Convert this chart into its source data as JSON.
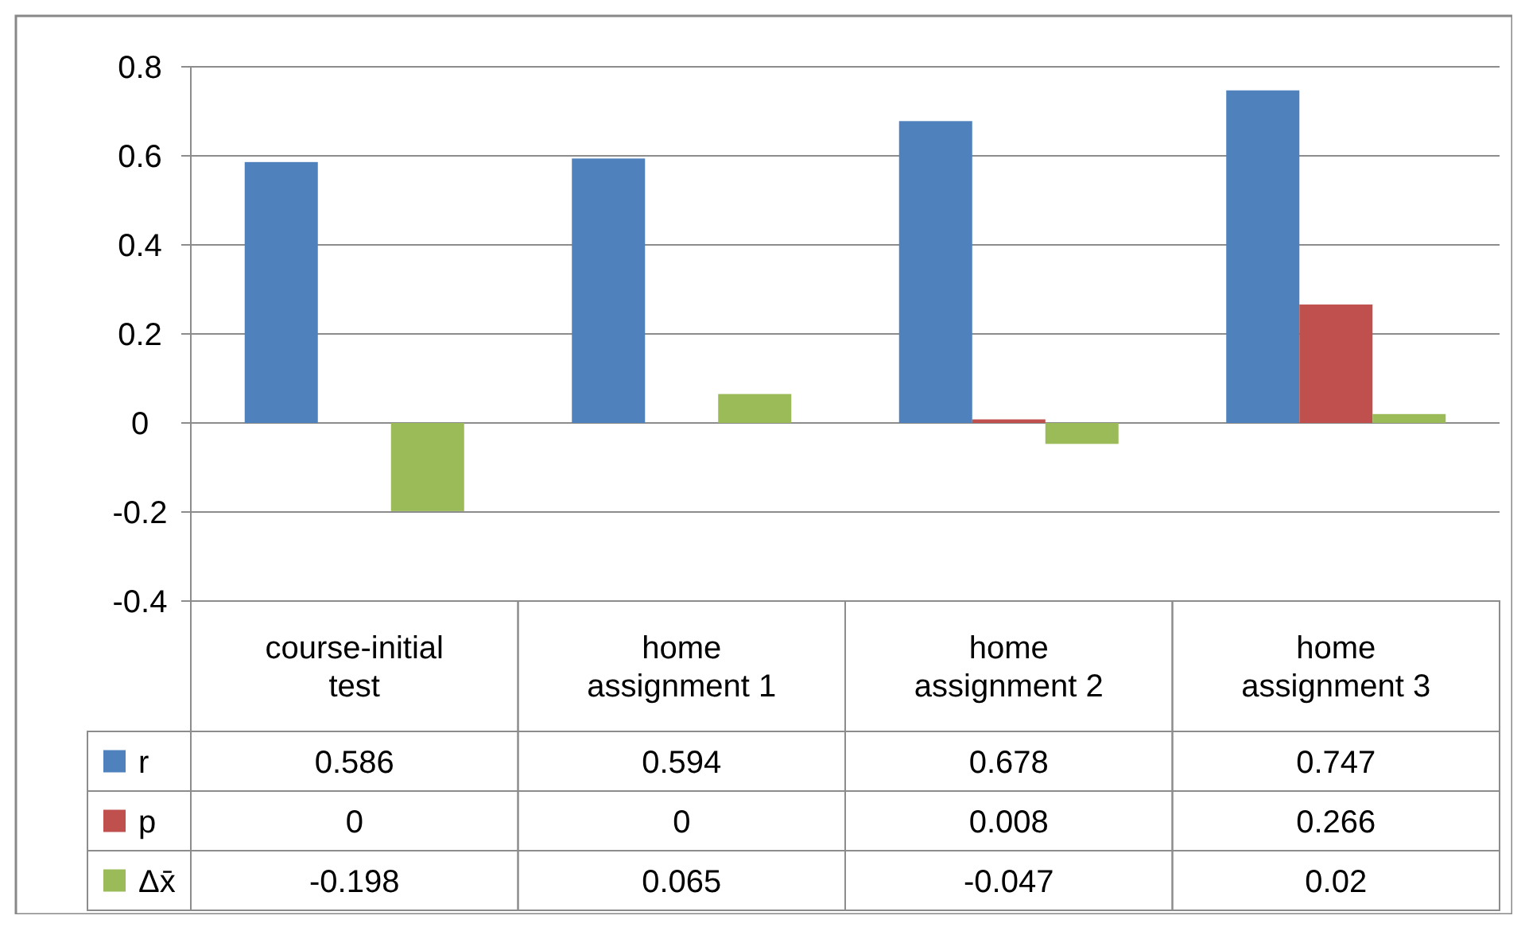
{
  "chart_data": {
    "type": "bar",
    "categories": [
      "course-initial test",
      "home assignment 1",
      "home assignment 2",
      "home assignment 3"
    ],
    "series": [
      {
        "name": "r",
        "color": "#4f81bd",
        "values": [
          0.586,
          0.594,
          0.678,
          0.747
        ]
      },
      {
        "name": "p",
        "color": "#c0504d",
        "values": [
          0,
          0,
          0.008,
          0.266
        ]
      },
      {
        "name": "Δx̄",
        "color": "#9bbb59",
        "values": [
          -0.198,
          0.065,
          -0.047,
          0.02
        ]
      }
    ],
    "ylim": [
      -0.4,
      0.8
    ],
    "yticks": [
      -0.4,
      -0.2,
      0,
      0.2,
      0.4,
      0.6,
      0.8
    ],
    "grid": true,
    "data_labels": true,
    "legend": "bottom"
  }
}
